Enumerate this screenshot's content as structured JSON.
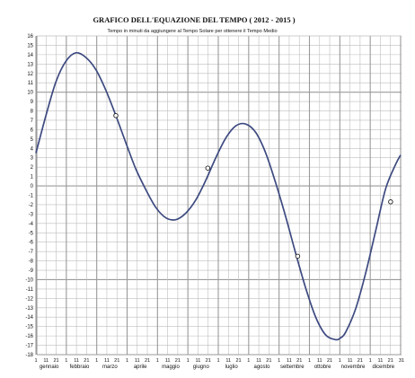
{
  "chart_data": {
    "type": "line",
    "title": "GRAFICO DELL'EQUAZIONE DEL TEMPO ( 2012 - 2015 )",
    "subtitle": "Tempo in minuti da aggiungere al Tempo Solare per ottenere il Tempo Medio",
    "ylim": [
      -18,
      16
    ],
    "y_ticks": [
      "16",
      "15",
      "14",
      "13",
      "12",
      "11",
      "10",
      "9",
      "8",
      "7",
      "6",
      "5",
      "4",
      "3",
      "2",
      "1",
      "0",
      "-1",
      "-2",
      "-3",
      "-4",
      "-5",
      "-6",
      "-7",
      "-8",
      "-9",
      "-10",
      "-11",
      "-12",
      "-13",
      "-14",
      "-15",
      "-16",
      "-17",
      "-18"
    ],
    "y_major_lines": [
      10,
      0,
      -10
    ],
    "months": [
      "gennaio",
      "febbraio",
      "marzo",
      "aprile",
      "maggio",
      "giugno",
      "luglio",
      "agosto",
      "settembre",
      "ottobre",
      "novembre",
      "dicembre"
    ],
    "day_ticks": [
      "1",
      "11",
      "21"
    ],
    "end_tick": "31",
    "grid": true,
    "series": [
      {
        "x": [
          0,
          10,
          20,
          30,
          40,
          50,
          60,
          70,
          80,
          90,
          100,
          110,
          120,
          130,
          140,
          150,
          160,
          170,
          180,
          190,
          200,
          210,
          220,
          230,
          240,
          250,
          260,
          270,
          280,
          290,
          300,
          305,
          310,
          320,
          330,
          340,
          350,
          360,
          365
        ],
        "values": [
          3.5,
          7.5,
          11.1,
          13.3,
          14.2,
          13.7,
          12.4,
          10.2,
          7.5,
          4.6,
          1.8,
          -0.4,
          -2.3,
          -3.4,
          -3.6,
          -2.9,
          -1.5,
          0.6,
          3.0,
          5.1,
          6.4,
          6.6,
          5.7,
          3.5,
          0.3,
          -3.3,
          -7.2,
          -10.9,
          -14.0,
          -15.9,
          -16.4,
          -16.2,
          -15.6,
          -13.1,
          -9.3,
          -4.8,
          -0.3,
          2.3,
          3.3
        ]
      }
    ],
    "markers": [
      {
        "x": 80,
        "y": 7.5
      },
      {
        "x": 172,
        "y": 1.9
      },
      {
        "x": 262,
        "y": -7.5
      },
      {
        "x": 355,
        "y": -1.7
      }
    ]
  }
}
